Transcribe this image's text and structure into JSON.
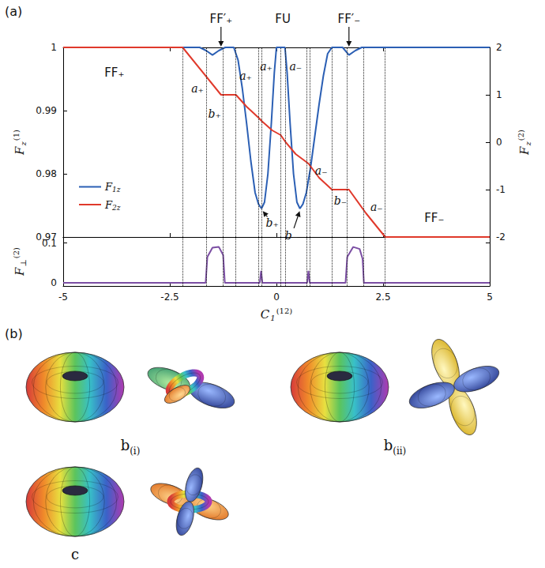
{
  "chart_data": {
    "type": "line",
    "panel_label": "(a)",
    "x_label": {
      "base": "C",
      "sub": "1",
      "sup": "(12)"
    },
    "xlim": [
      -5,
      5
    ],
    "xticks": [
      -5,
      -2.5,
      0,
      2.5,
      5
    ],
    "ylim": [
      0.97,
      1
    ],
    "yticks": [
      0.97,
      0.98,
      0.99,
      1
    ],
    "y_label": {
      "base": "F",
      "sub": "z",
      "sup": "(1)"
    },
    "y2lim": [
      -2,
      2
    ],
    "y2ticks": [
      -2,
      -1,
      0,
      1,
      2
    ],
    "y2_label": {
      "base": "F",
      "sub": "z",
      "sup": "(2)"
    },
    "legend": "lower left",
    "series": [
      {
        "name": "F1z",
        "color": "#2b5fb4",
        "axis": "y",
        "x": [
          -5,
          -1.8,
          -1.65,
          -1.5,
          -1.35,
          -1.2,
          -1.0,
          -0.9,
          -0.8,
          -0.7,
          -0.6,
          -0.5,
          -0.42,
          -0.35,
          -0.28,
          -0.2,
          -0.12,
          -0.05,
          0.0,
          0.2,
          0.25,
          0.32,
          0.4,
          0.48,
          0.55,
          0.62,
          0.7,
          0.8,
          0.9,
          1.0,
          1.1,
          1.2,
          1.3,
          1.55,
          1.7,
          1.85,
          2.0,
          5
        ],
        "values": [
          1,
          1,
          0.9995,
          0.9988,
          0.9995,
          1,
          1,
          0.998,
          0.9935,
          0.988,
          0.982,
          0.977,
          0.9752,
          0.9745,
          0.9755,
          0.98,
          0.988,
          0.996,
          1,
          1,
          0.996,
          0.988,
          0.98,
          0.9755,
          0.9745,
          0.9752,
          0.977,
          0.981,
          0.986,
          0.991,
          0.9955,
          0.999,
          1,
          1,
          0.9988,
          0.9995,
          1,
          1
        ]
      },
      {
        "name": "F2z",
        "color": "#e0392b",
        "axis": "y2",
        "x": [
          -5,
          -2.2,
          -1.3,
          -0.95,
          -0.7,
          -0.4,
          -0.35,
          -0.1,
          0.1,
          0.2,
          0.45,
          0.75,
          1.0,
          1.3,
          1.7,
          2.1,
          2.55,
          5
        ],
        "values": [
          2,
          2,
          1,
          1,
          0.75,
          0.5,
          0.45,
          0.25,
          0.15,
          0.02,
          -0.25,
          -0.45,
          -0.75,
          -1,
          -1,
          -1.5,
          -2,
          -2
        ]
      }
    ],
    "boundaries": [
      -2.2,
      -1.65,
      -1.25,
      -0.95,
      -0.42,
      -0.35,
      0.1,
      0.2,
      0.7,
      0.78,
      1.3,
      1.65,
      2.05,
      2.55
    ],
    "annotations": [
      {
        "text": "FF₊",
        "x": -3.8,
        "y": 0.996
      },
      {
        "text": "FF₋",
        "x": 3.7,
        "y": 0.973
      },
      {
        "text": "a₊",
        "x": -1.85,
        "y": 0.9935
      },
      {
        "text": "b₊",
        "x": -1.45,
        "y": 0.9895
      },
      {
        "text": "a₊",
        "x": -0.72,
        "y": 0.9955
      },
      {
        "text": "a₊",
        "x": -0.24,
        "y": 0.997
      },
      {
        "text": "a₋",
        "x": 0.45,
        "y": 0.997
      },
      {
        "text": "a₋",
        "x": 1.05,
        "y": 0.9805
      },
      {
        "text": "b₋",
        "x": 1.5,
        "y": 0.9757
      },
      {
        "text": "a₋",
        "x": 2.35,
        "y": 0.9748
      },
      {
        "text": "b₊",
        "x": -0.1,
        "y": 0.9722,
        "target": [
          -0.33,
          0.9742
        ]
      },
      {
        "text": "b₋",
        "x": 0.35,
        "y": 0.9702,
        "target": [
          0.55,
          0.9742
        ]
      },
      {
        "text": "FF′₊",
        "x": -1.3,
        "y": 1.0045,
        "target": [
          -1.3,
          1.0
        ]
      },
      {
        "text": "FU",
        "x": 0.15,
        "y": 1.0045
      },
      {
        "text": "FF′₋",
        "x": 1.7,
        "y": 1.0045,
        "target": [
          1.7,
          1.0
        ]
      }
    ],
    "subplot": {
      "ylim": [
        -0.008,
        0.115
      ],
      "yticks": [
        0,
        0.1
      ],
      "y_label": {
        "base": "F",
        "sub": "⊥",
        "sup": "(2)"
      },
      "series": [
        {
          "color": "#7b4ea3",
          "x": [
            -5,
            -1.66,
            -1.62,
            -1.5,
            -1.35,
            -1.25,
            -1.21,
            -0.39,
            -0.36,
            -0.33,
            0.72,
            0.75,
            0.78,
            1.62,
            1.66,
            1.8,
            1.95,
            2.02,
            2.05,
            5
          ],
          "values": [
            0,
            0,
            0.065,
            0.088,
            0.09,
            0.07,
            0,
            0,
            0.03,
            0,
            0,
            0.03,
            0,
            0,
            0.065,
            0.09,
            0.085,
            0.06,
            0,
            0
          ]
        }
      ]
    }
  },
  "figure_b": {
    "panel_label": "(b)",
    "items": [
      {
        "label": {
          "base": "b",
          "sub": "(i)"
        }
      },
      {
        "label": {
          "base": "b",
          "sub": "(ii)"
        }
      },
      {
        "label": {
          "base": "c"
        }
      }
    ]
  }
}
